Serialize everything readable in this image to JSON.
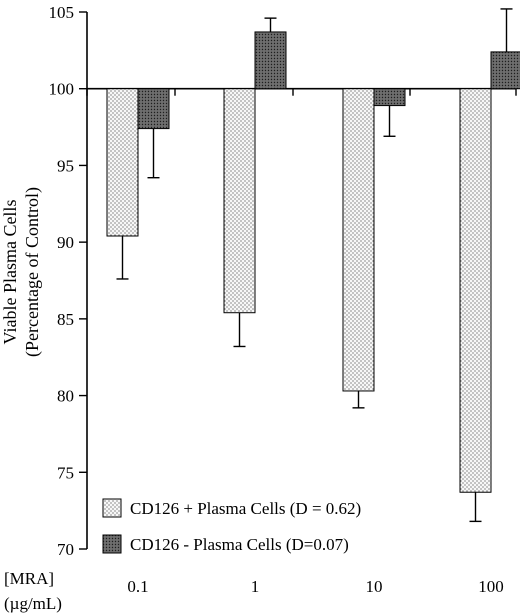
{
  "chart_data": {
    "type": "bar",
    "x_axis_label": [
      "[MRA]",
      "(µg/mL)"
    ],
    "categories": [
      "0.1",
      "1",
      "10",
      "100"
    ],
    "ylabel_lines": [
      "Viable Plasma Cells",
      "(Percentage of Control)"
    ],
    "ylim": [
      70,
      105
    ],
    "yticks": [
      70,
      75,
      80,
      85,
      90,
      95,
      100,
      105
    ],
    "baseline": 100,
    "series": [
      {
        "name": "CD126 + Plasma Cells (D = 0.62)",
        "pattern": "dotted-light",
        "values": [
          90.4,
          85.4,
          80.3,
          73.7
        ],
        "errors": [
          2.8,
          2.2,
          1.1,
          1.9
        ]
      },
      {
        "name": "CD126 -  Plasma Cells (D=0.07)",
        "pattern": "dotted-dark",
        "values": [
          97.4,
          103.7,
          98.9,
          102.4
        ],
        "errors": [
          3.2,
          0.9,
          2.0,
          2.8
        ]
      }
    ],
    "legend_position": "bottom-left",
    "grid": false
  }
}
